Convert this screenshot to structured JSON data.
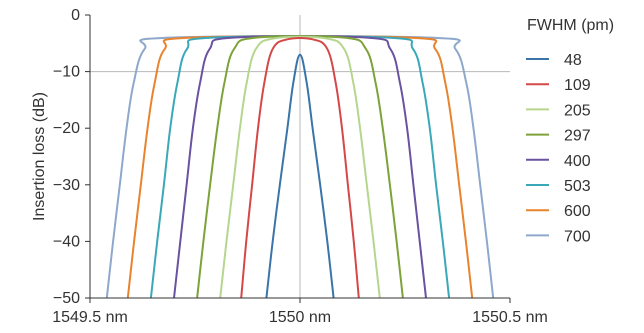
{
  "chart_data": {
    "type": "line",
    "title": "",
    "xlabel": "",
    "ylabel": "Insertion loss (dB)",
    "xlim": [
      1549.5,
      1550.5
    ],
    "ylim": [
      -50,
      0
    ],
    "x_ticks": [
      {
        "value": 1549.5,
        "label": "1549.5 nm"
      },
      {
        "value": 1550.0,
        "label": "1550 nm"
      },
      {
        "value": 1550.5,
        "label": "1550.5 nm"
      }
    ],
    "y_ticks": [
      {
        "value": 0,
        "label": "0"
      },
      {
        "value": -10,
        "label": "−10"
      },
      {
        "value": -20,
        "label": "−20"
      },
      {
        "value": -30,
        "label": "−30"
      },
      {
        "value": -40,
        "label": "−40"
      },
      {
        "value": -50,
        "label": "−50"
      }
    ],
    "grid": "center lines only",
    "legend": {
      "title": "FWHM (pm)",
      "placement": "right"
    },
    "series": [
      {
        "name": "48",
        "color": "#3a74a8",
        "x": [
          1549.92,
          1549.935,
          1549.952,
          1549.97,
          1549.984,
          1550.0,
          1550.016,
          1550.03,
          1550.048,
          1550.065,
          1550.08
        ],
        "y": [
          -50,
          -40,
          -30,
          -20,
          -12,
          -7,
          -12,
          -20,
          -30,
          -40,
          -50
        ]
      },
      {
        "name": "109",
        "color": "#d44848",
        "x": [
          1549.86,
          1549.872,
          1549.886,
          1549.9,
          1549.915,
          1549.935,
          1549.97,
          1550.03,
          1550.065,
          1550.085,
          1550.1,
          1550.114,
          1550.128,
          1550.14
        ],
        "y": [
          -50,
          -40,
          -30,
          -20,
          -12,
          -6,
          -4.3,
          -4.3,
          -6,
          -12,
          -20,
          -30,
          -40,
          -50
        ]
      },
      {
        "name": "205",
        "color": "#b6d68e",
        "x": [
          1549.81,
          1549.825,
          1549.841,
          1549.857,
          1549.873,
          1549.895,
          1549.94,
          1550.06,
          1550.105,
          1550.127,
          1550.143,
          1550.159,
          1550.175,
          1550.19
        ],
        "y": [
          -50,
          -40,
          -30,
          -20,
          -12,
          -6,
          -4.1,
          -4.1,
          -6,
          -12,
          -20,
          -30,
          -40,
          -50
        ]
      },
      {
        "name": "297",
        "color": "#7ea23a",
        "x": [
          1549.755,
          1549.77,
          1549.786,
          1549.803,
          1549.82,
          1549.843,
          1549.895,
          1550.105,
          1550.157,
          1550.18,
          1550.197,
          1550.214,
          1550.23,
          1550.245
        ],
        "y": [
          -50,
          -40,
          -30,
          -20,
          -12,
          -6,
          -4.0,
          -4.0,
          -6,
          -12,
          -20,
          -30,
          -40,
          -50
        ]
      },
      {
        "name": "400",
        "color": "#6b52a0",
        "x": [
          1549.7,
          1549.715,
          1549.73,
          1549.745,
          1549.762,
          1549.785,
          1549.84,
          1550.16,
          1550.215,
          1550.238,
          1550.255,
          1550.27,
          1550.285,
          1550.3
        ],
        "y": [
          -50,
          -40,
          -30,
          -20,
          -12,
          -6,
          -4.0,
          -4.0,
          -6,
          -12,
          -20,
          -30,
          -40,
          -50
        ]
      },
      {
        "name": "503",
        "color": "#3aa8b8",
        "x": [
          1549.645,
          1549.66,
          1549.676,
          1549.691,
          1549.708,
          1549.731,
          1549.79,
          1550.21,
          1550.269,
          1550.292,
          1550.309,
          1550.324,
          1550.34,
          1550.355
        ],
        "y": [
          -50,
          -40,
          -30,
          -20,
          -12,
          -6,
          -4.0,
          -4.0,
          -6,
          -12,
          -20,
          -30,
          -40,
          -50
        ]
      },
      {
        "name": "600",
        "color": "#e8832e",
        "x": [
          1549.59,
          1549.605,
          1549.621,
          1549.637,
          1549.654,
          1549.678,
          1549.74,
          1550.26,
          1550.322,
          1550.346,
          1550.363,
          1550.379,
          1550.395,
          1550.41
        ],
        "y": [
          -50,
          -40,
          -30,
          -20,
          -12,
          -6,
          -4.0,
          -4.0,
          -6,
          -12,
          -20,
          -30,
          -40,
          -50
        ]
      },
      {
        "name": "700",
        "color": "#8ea8cc",
        "x": [
          1549.54,
          1549.555,
          1549.571,
          1549.587,
          1549.604,
          1549.63,
          1549.69,
          1550.31,
          1550.37,
          1550.396,
          1550.413,
          1550.429,
          1550.445,
          1550.46
        ],
        "y": [
          -50,
          -40,
          -30,
          -20,
          -12,
          -6,
          -4.0,
          -4.0,
          -6,
          -12,
          -20,
          -30,
          -40,
          -50
        ]
      }
    ]
  }
}
